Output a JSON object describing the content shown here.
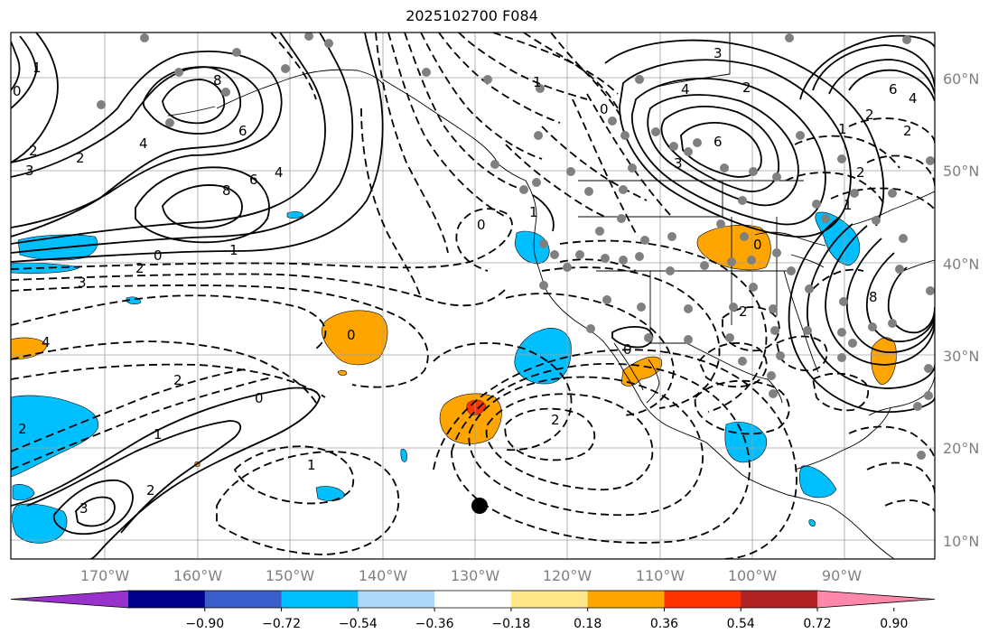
{
  "title": "2025102700 F084",
  "lat_labels": [
    "60°N",
    "50°N",
    "40°N",
    "30°N",
    "20°N",
    "10°N"
  ],
  "lon_labels": [
    "170°W",
    "160°W",
    "150°W",
    "140°W",
    "130°W",
    "120°W",
    "110°W",
    "100°W",
    "90°W"
  ],
  "colorbar": {
    "tick_labels": [
      "−0.90",
      "−0.72",
      "−0.54",
      "−0.36",
      "−0.18",
      "0.18",
      "0.36",
      "0.54",
      "0.72",
      "0.90"
    ],
    "colors": [
      "#9932cc",
      "#00008b",
      "#3a5fcd",
      "#00bfff",
      "#add8f8",
      "#ffffff",
      "#ffe88a",
      "#ffa500",
      "#ff3300",
      "#b22222",
      "#ff88aa"
    ]
  },
  "contour_labels": [
    "1",
    "0",
    "2",
    "3",
    "8",
    "6",
    "4",
    "8",
    "6",
    "4",
    "2",
    "0",
    "1",
    "2",
    "3",
    "4",
    "2",
    "0",
    "1",
    "2",
    "3",
    "2",
    "1",
    "0",
    "2",
    "3",
    "4",
    "6",
    "8",
    "6",
    "4",
    "2",
    "0",
    "1",
    "2",
    "0",
    "1",
    "2",
    "1",
    "2",
    "3",
    "0",
    "1",
    "2",
    "0"
  ],
  "colors": {
    "land_border": "#000000",
    "grid": "#a0a0a0",
    "station": "#808080",
    "anomaly_blue": "#00bfff",
    "anomaly_orange": "#ffa500",
    "anomaly_red": "#ff3300"
  }
}
